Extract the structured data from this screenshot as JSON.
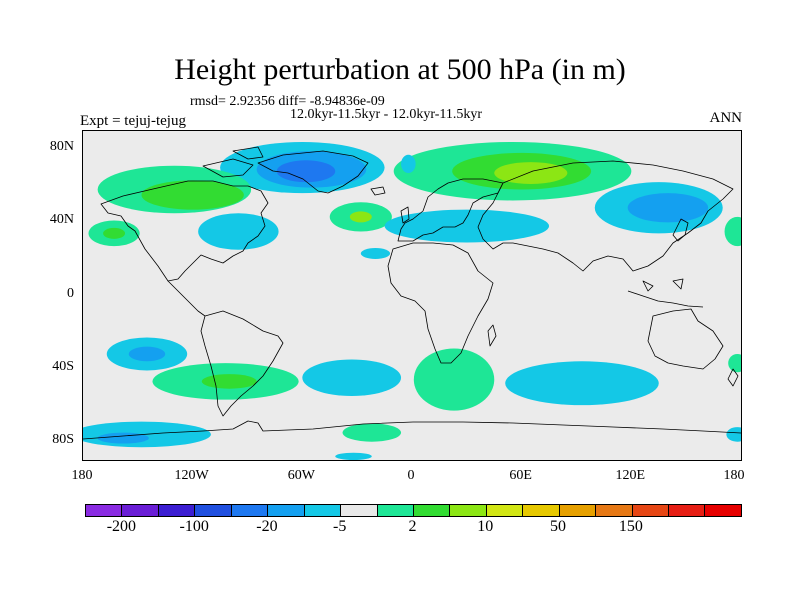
{
  "figure": {
    "title": "Height perturbation at 500 hPa (in m)",
    "stats_line": "rmsd= 2.92356  diff= -8.94836e-09",
    "period_line": "12.0kyr-11.5kyr - 12.0kyr-11.5kyr",
    "experiment": "Expt = tejuj-tejug",
    "season": "ANN"
  },
  "map_axes": {
    "y_ticks": [
      {
        "lat": 80,
        "label": "80N"
      },
      {
        "lat": 40,
        "label": "40N"
      },
      {
        "lat": 0,
        "label": "0"
      },
      {
        "lat": -40,
        "label": "40S"
      },
      {
        "lat": -80,
        "label": "80S"
      }
    ],
    "x_ticks": [
      {
        "lon": -180,
        "label": "180"
      },
      {
        "lon": -120,
        "label": "120W"
      },
      {
        "lon": -60,
        "label": "60W"
      },
      {
        "lon": 0,
        "label": "0"
      },
      {
        "lon": 60,
        "label": "60E"
      },
      {
        "lon": 120,
        "label": "120E"
      },
      {
        "lon": 180,
        "label": "180"
      }
    ],
    "lon_range": [
      -180,
      180
    ],
    "lat_range": [
      -90,
      90
    ]
  },
  "colorbar": {
    "colors": [
      "#8a2be2",
      "#6a1ed6",
      "#3c1ed2",
      "#2050e0",
      "#1e78f0",
      "#14a0f0",
      "#14c8e6",
      "#e8e8e8",
      "#1ee696",
      "#32dc32",
      "#8ce614",
      "#d2e614",
      "#e6c800",
      "#e6a000",
      "#e67814",
      "#e64614",
      "#e61e14",
      "#e60000"
    ],
    "labels": [
      {
        "text": "-200",
        "boundary": 1
      },
      {
        "text": "-100",
        "boundary": 3
      },
      {
        "text": "-20",
        "boundary": 5
      },
      {
        "text": "-5",
        "boundary": 7
      },
      {
        "text": "2",
        "boundary": 9
      },
      {
        "text": "10",
        "boundary": 11
      },
      {
        "text": "50",
        "boundary": 13
      },
      {
        "text": "150",
        "boundary": 15
      }
    ]
  },
  "anomalies": [
    {
      "lon": -60,
      "lat": 70,
      "rlon": 45,
      "rlat": 14,
      "color": "#14c8e6"
    },
    {
      "lon": -55,
      "lat": 69,
      "rlon": 30,
      "rlat": 10,
      "color": "#14a0f0"
    },
    {
      "lon": -58,
      "lat": 68,
      "rlon": 16,
      "rlat": 6,
      "color": "#1e78f0"
    },
    {
      "lon": -130,
      "lat": 58,
      "rlon": 42,
      "rlat": 13,
      "color": "#1ee696"
    },
    {
      "lon": -120,
      "lat": 55,
      "rlon": 28,
      "rlat": 8,
      "color": "#32dc32"
    },
    {
      "lon": -95,
      "lat": 35,
      "rlon": 22,
      "rlat": 10,
      "color": "#14c8e6"
    },
    {
      "lon": -163,
      "lat": 34,
      "rlon": 14,
      "rlat": 7,
      "color": "#1ee696"
    },
    {
      "lon": -163,
      "lat": 34,
      "rlon": 6,
      "rlat": 3,
      "color": "#32dc32"
    },
    {
      "lon": -28,
      "lat": 43,
      "rlon": 17,
      "rlat": 8,
      "color": "#1ee696"
    },
    {
      "lon": -28,
      "lat": 43,
      "rlon": 6,
      "rlat": 3,
      "color": "#8ce614"
    },
    {
      "lon": -20,
      "lat": 23,
      "rlon": 8,
      "rlat": 3,
      "color": "#14c8e6"
    },
    {
      "lon": 55,
      "lat": 68,
      "rlon": 65,
      "rlat": 16,
      "color": "#1ee696"
    },
    {
      "lon": 60,
      "lat": 68,
      "rlon": 38,
      "rlat": 10,
      "color": "#32dc32"
    },
    {
      "lon": 65,
      "lat": 67,
      "rlon": 20,
      "rlat": 6,
      "color": "#8ce614"
    },
    {
      "lon": 30,
      "lat": 38,
      "rlon": 45,
      "rlat": 9,
      "color": "#14c8e6"
    },
    {
      "lon": 135,
      "lat": 48,
      "rlon": 35,
      "rlat": 14,
      "color": "#14c8e6"
    },
    {
      "lon": 140,
      "lat": 48,
      "rlon": 22,
      "rlat": 8,
      "color": "#14a0f0"
    },
    {
      "lon": -145,
      "lat": -32,
      "rlon": 22,
      "rlat": 9,
      "color": "#14c8e6"
    },
    {
      "lon": -145,
      "lat": -32,
      "rlon": 10,
      "rlat": 4,
      "color": "#14a0f0"
    },
    {
      "lon": -102,
      "lat": -47,
      "rlon": 40,
      "rlat": 10,
      "color": "#1ee696"
    },
    {
      "lon": -100,
      "lat": -47,
      "rlon": 15,
      "rlat": 4,
      "color": "#32dc32"
    },
    {
      "lon": -33,
      "lat": -45,
      "rlon": 27,
      "rlat": 10,
      "color": "#14c8e6"
    },
    {
      "lon": 23,
      "lat": -46,
      "rlon": 22,
      "rlat": 17,
      "color": "#1ee696"
    },
    {
      "lon": 93,
      "lat": -48,
      "rlon": 42,
      "rlat": 12,
      "color": "#14c8e6"
    },
    {
      "lon": -148,
      "lat": -76,
      "rlon": 38,
      "rlat": 7,
      "color": "#14c8e6"
    },
    {
      "lon": -158,
      "lat": -78,
      "rlon": 14,
      "rlat": 3,
      "color": "#14a0f0"
    },
    {
      "lon": -22,
      "lat": -75,
      "rlon": 16,
      "rlat": 5,
      "color": "#1ee696"
    },
    {
      "lon": 178,
      "lat": 35,
      "rlon": 7,
      "rlat": 8,
      "color": "#1ee696"
    },
    {
      "lon": 178,
      "lat": -37,
      "rlon": 5,
      "rlat": 5,
      "color": "#1ee696"
    },
    {
      "lon": -2,
      "lat": 72,
      "rlon": 4,
      "rlat": 5,
      "color": "#14c8e6"
    },
    {
      "lon": 178,
      "lat": -76,
      "rlon": 6,
      "rlat": 4,
      "color": "#14c8e6"
    },
    {
      "lon": -32,
      "lat": -88,
      "rlon": 10,
      "rlat": 2,
      "color": "#14c8e6"
    }
  ]
}
